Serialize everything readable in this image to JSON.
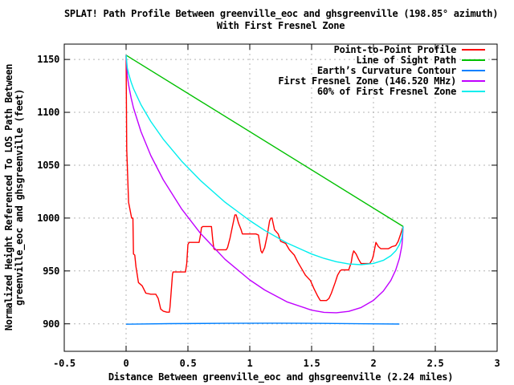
{
  "chart_data": {
    "type": "line",
    "title_line1": "SPLAT! Path Profile Between greenville_eoc and ghsgreenville (198.85° azimuth)",
    "title_line2": "With First Fresnel Zone",
    "xlabel": "Distance Between greenville_eoc and ghsgreenville (2.24 miles)",
    "ylabel_line1": "Normalized Height Referenced To LOS Path Between",
    "ylabel_line2": "greenville_eoc and ghsgreenville (feet)",
    "x_range": [
      -0.5,
      3
    ],
    "y_range": [
      874,
      1164.5
    ],
    "x_ticks": [
      "-0.5",
      "0",
      "0.5",
      "1",
      "1.5",
      "2",
      "2.5",
      "3"
    ],
    "x_tick_values": [
      -0.5,
      0,
      0.5,
      1,
      1.5,
      2,
      2.5,
      3
    ],
    "y_ticks": [
      "900",
      "950",
      "1000",
      "1050",
      "1100",
      "1150"
    ],
    "y_tick_values": [
      900,
      950,
      1000,
      1050,
      1100,
      1150
    ],
    "grid": true,
    "legend_position": "top-right",
    "path_length_miles": 2.24,
    "frequency_mhz": "146.520",
    "azimuth_deg": "198.85",
    "colors": {
      "background": "#ffffff",
      "border": "#000000",
      "grid": "#b4b4b4",
      "text": "#000000",
      "profile": "#ff0000",
      "los": "#00c000",
      "earth_curvature": "#0080ff",
      "fresnel": "#c000ff",
      "fresnel60": "#00eeee"
    },
    "series": [
      {
        "name": "Point-to-Point Profile",
        "color": "#ff0000",
        "points": [
          [
            0,
            1154
          ],
          [
            0.005,
            1065
          ],
          [
            0.02,
            1015
          ],
          [
            0.045,
            1000
          ],
          [
            0.055,
            1000
          ],
          [
            0.06,
            966
          ],
          [
            0.07,
            965
          ],
          [
            0.08,
            954
          ],
          [
            0.1,
            939
          ],
          [
            0.13,
            936
          ],
          [
            0.16,
            929
          ],
          [
            0.2,
            928
          ],
          [
            0.24,
            928
          ],
          [
            0.26,
            924
          ],
          [
            0.28,
            914
          ],
          [
            0.3,
            912
          ],
          [
            0.33,
            911
          ],
          [
            0.35,
            911
          ],
          [
            0.355,
            916
          ],
          [
            0.365,
            931
          ],
          [
            0.375,
            947
          ],
          [
            0.38,
            949
          ],
          [
            0.48,
            949
          ],
          [
            0.49,
            957
          ],
          [
            0.5,
            975
          ],
          [
            0.51,
            977
          ],
          [
            0.59,
            977
          ],
          [
            0.6,
            983
          ],
          [
            0.61,
            991
          ],
          [
            0.62,
            992
          ],
          [
            0.69,
            992
          ],
          [
            0.7,
            980
          ],
          [
            0.71,
            971
          ],
          [
            0.72,
            970
          ],
          [
            0.81,
            970
          ],
          [
            0.82,
            972
          ],
          [
            0.84,
            981
          ],
          [
            0.86,
            992
          ],
          [
            0.88,
            1003
          ],
          [
            0.89,
            1003
          ],
          [
            0.91,
            995
          ],
          [
            0.93,
            989
          ],
          [
            0.94,
            985
          ],
          [
            1.05,
            985
          ],
          [
            1.07,
            984
          ],
          [
            1.09,
            969
          ],
          [
            1.1,
            967
          ],
          [
            1.12,
            972
          ],
          [
            1.14,
            983
          ],
          [
            1.16,
            997
          ],
          [
            1.17,
            1000
          ],
          [
            1.18,
            1000
          ],
          [
            1.2,
            989
          ],
          [
            1.23,
            985
          ],
          [
            1.25,
            978
          ],
          [
            1.29,
            976
          ],
          [
            1.32,
            970
          ],
          [
            1.36,
            965
          ],
          [
            1.39,
            958
          ],
          [
            1.42,
            952
          ],
          [
            1.45,
            946
          ],
          [
            1.49,
            941
          ],
          [
            1.52,
            933
          ],
          [
            1.55,
            926
          ],
          [
            1.57,
            922
          ],
          [
            1.62,
            922
          ],
          [
            1.64,
            924
          ],
          [
            1.66,
            929
          ],
          [
            1.69,
            939
          ],
          [
            1.71,
            946
          ],
          [
            1.73,
            950
          ],
          [
            1.74,
            951
          ],
          [
            1.8,
            951
          ],
          [
            1.82,
            958
          ],
          [
            1.83,
            965
          ],
          [
            1.84,
            969
          ],
          [
            1.86,
            966
          ],
          [
            1.88,
            961
          ],
          [
            1.9,
            957
          ],
          [
            1.97,
            957
          ],
          [
            1.99,
            961
          ],
          [
            2.0,
            965
          ],
          [
            2.01,
            971
          ],
          [
            2.02,
            977
          ],
          [
            2.04,
            973
          ],
          [
            2.06,
            971
          ],
          [
            2.12,
            971
          ],
          [
            2.15,
            973
          ],
          [
            2.18,
            974
          ],
          [
            2.2,
            978
          ],
          [
            2.22,
            985
          ],
          [
            2.24,
            992
          ]
        ]
      },
      {
        "name": "Line of Sight Path",
        "color": "#00c000",
        "points": [
          [
            0,
            1154
          ],
          [
            2.24,
            992
          ]
        ]
      },
      {
        "name": "Earth’s Curvature Contour",
        "color": "#0080ff",
        "points": [
          [
            0,
            899.6
          ],
          [
            0.35,
            900.2
          ],
          [
            0.8,
            900.5
          ],
          [
            1.2,
            900.6
          ],
          [
            1.6,
            900.4
          ],
          [
            1.95,
            900.0
          ],
          [
            2.21,
            899.8
          ]
        ]
      },
      {
        "name": "First Fresnel Zone (146.520 MHz)",
        "color": "#c000ff",
        "points": [
          [
            0,
            1154
          ],
          [
            0.01,
            1134.5
          ],
          [
            0.02,
            1126.1
          ],
          [
            0.04,
            1113.8
          ],
          [
            0.06,
            1104.2
          ],
          [
            0.12,
            1081.8
          ],
          [
            0.2,
            1059.1
          ],
          [
            0.3,
            1036.3
          ],
          [
            0.45,
            1008.5
          ],
          [
            0.6,
            985.7
          ],
          [
            0.8,
            961.0
          ],
          [
            1.0,
            941.5
          ],
          [
            1.12,
            932.0
          ],
          [
            1.3,
            920.8
          ],
          [
            1.5,
            912.9
          ],
          [
            1.6,
            910.9
          ],
          [
            1.7,
            910.5
          ],
          [
            1.8,
            911.8
          ],
          [
            1.9,
            915.4
          ],
          [
            2.0,
            922.2
          ],
          [
            2.08,
            931.0
          ],
          [
            2.14,
            941.0
          ],
          [
            2.18,
            950.8
          ],
          [
            2.21,
            961.8
          ],
          [
            2.23,
            973.9
          ],
          [
            2.235,
            981.0
          ],
          [
            2.24,
            992
          ]
        ]
      },
      {
        "name": "60% of First Fresnel Zone",
        "color": "#00eeee",
        "points": [
          [
            0,
            1154
          ],
          [
            0.01,
            1142.0
          ],
          [
            0.02,
            1136.7
          ],
          [
            0.04,
            1128.7
          ],
          [
            0.06,
            1122.4
          ],
          [
            0.12,
            1107.2
          ],
          [
            0.2,
            1091.3
          ],
          [
            0.3,
            1074.7
          ],
          [
            0.45,
            1053.7
          ],
          [
            0.6,
            1035.7
          ],
          [
            0.8,
            1015.0
          ],
          [
            1.0,
            997.6
          ],
          [
            1.12,
            988.4
          ],
          [
            1.3,
            976.5
          ],
          [
            1.5,
            966.0
          ],
          [
            1.6,
            961.9
          ],
          [
            1.7,
            958.7
          ],
          [
            1.8,
            956.6
          ],
          [
            1.9,
            955.9
          ],
          [
            2.0,
            957.1
          ],
          [
            2.08,
            960.0
          ],
          [
            2.14,
            964.3
          ],
          [
            2.18,
            969.0
          ],
          [
            2.21,
            974.8
          ],
          [
            2.23,
            981.4
          ],
          [
            2.24,
            992
          ]
        ]
      }
    ]
  }
}
